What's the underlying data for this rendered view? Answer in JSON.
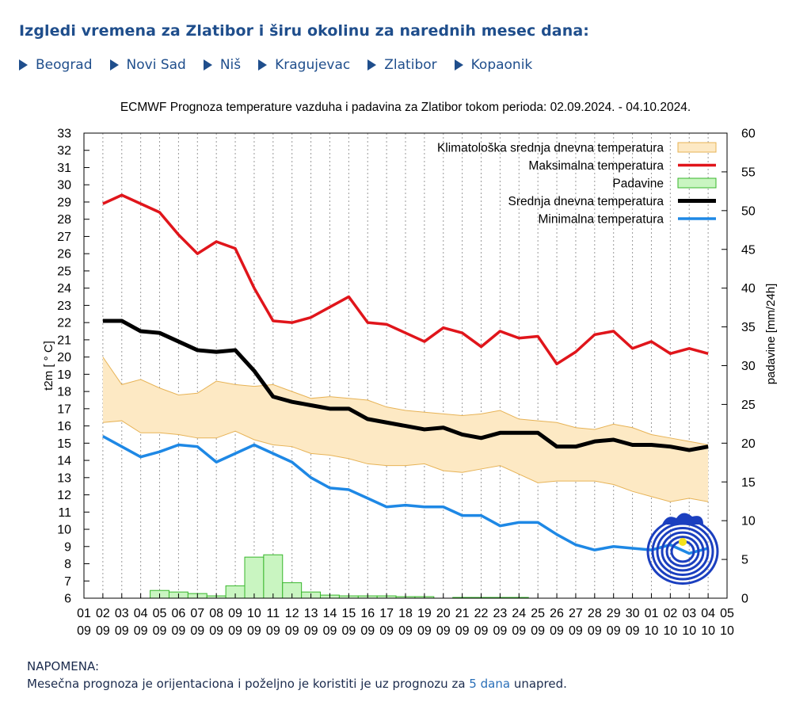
{
  "header": {
    "title": "Izgledi vremena za Zlatibor i širu okolinu za narednih mesec dana:"
  },
  "nav": {
    "cities": [
      "Beograd",
      "Novi Sad",
      "Niš",
      "Kragujevac",
      "Zlatibor",
      "Kopaonik"
    ]
  },
  "note": {
    "heading": "NAPOMENA:",
    "text_before": "Mesečna prognoza je orijentaciona i poželjno je koristiti je uz prognozu za",
    "link": "5 dana",
    "text_after": "unapred."
  },
  "colors": {
    "max": "#e0151b",
    "mean": "#000000",
    "min": "#1e88e5",
    "clim_fill": "#fde9c4",
    "clim_line": "#e7b356",
    "precip_fill": "#c9f5c1",
    "precip_line": "#38b62c",
    "title_blue": "#1f4e8c"
  },
  "chart_data": {
    "type": "line",
    "title": "ECMWF Prognoza temperature vazduha i padavina za Zlatibor tokom perioda: 02.09.2024. - 04.10.2024.",
    "ylabel": "t2m [ ° C]",
    "y2label": "padavine [mm/24h]",
    "ylim": [
      6,
      33
    ],
    "y2lim": [
      0,
      60
    ],
    "yticks": [
      6,
      7,
      8,
      9,
      10,
      11,
      12,
      13,
      14,
      15,
      16,
      17,
      18,
      19,
      20,
      21,
      22,
      23,
      24,
      25,
      26,
      27,
      28,
      29,
      30,
      31,
      32,
      33
    ],
    "y2ticks": [
      0,
      5,
      10,
      15,
      20,
      25,
      30,
      35,
      40,
      45,
      50,
      55,
      60
    ],
    "x_tick_days": [
      "01",
      "02",
      "03",
      "04",
      "05",
      "06",
      "07",
      "08",
      "09",
      "10",
      "11",
      "12",
      "13",
      "14",
      "15",
      "16",
      "17",
      "18",
      "19",
      "20",
      "21",
      "22",
      "23",
      "24",
      "25",
      "26",
      "27",
      "28",
      "29",
      "30",
      "01",
      "02",
      "03",
      "04",
      "05"
    ],
    "x_tick_months": [
      "09",
      "09",
      "09",
      "09",
      "09",
      "09",
      "09",
      "09",
      "09",
      "09",
      "09",
      "09",
      "09",
      "09",
      "09",
      "09",
      "09",
      "09",
      "09",
      "09",
      "09",
      "09",
      "09",
      "09",
      "09",
      "09",
      "09",
      "09",
      "09",
      "09",
      "10",
      "10",
      "10",
      "10",
      "10"
    ],
    "x_dates": [
      "2024-09-02",
      "2024-09-03",
      "2024-09-04",
      "2024-09-05",
      "2024-09-06",
      "2024-09-07",
      "2024-09-08",
      "2024-09-09",
      "2024-09-10",
      "2024-09-11",
      "2024-09-12",
      "2024-09-13",
      "2024-09-14",
      "2024-09-15",
      "2024-09-16",
      "2024-09-17",
      "2024-09-18",
      "2024-09-19",
      "2024-09-20",
      "2024-09-21",
      "2024-09-22",
      "2024-09-23",
      "2024-09-24",
      "2024-09-25",
      "2024-09-26",
      "2024-09-27",
      "2024-09-28",
      "2024-09-29",
      "2024-09-30",
      "2024-10-01",
      "2024-10-02",
      "2024-10-03",
      "2024-10-04"
    ],
    "grid": "vertical-dashed",
    "legend_position": "top-right",
    "series": [
      {
        "name": "Klimatološka srednja dnevna temperatura",
        "kind": "band",
        "upper": [
          20.0,
          18.4,
          18.7,
          18.2,
          17.8,
          17.9,
          18.6,
          18.4,
          18.3,
          18.4,
          18.0,
          17.6,
          17.7,
          17.6,
          17.5,
          17.1,
          16.9,
          16.8,
          16.7,
          16.6,
          16.7,
          16.9,
          16.4,
          16.3,
          16.2,
          15.9,
          15.8,
          16.1,
          15.9,
          15.5,
          15.3,
          15.1,
          14.9
        ],
        "lower": [
          16.2,
          16.3,
          15.6,
          15.6,
          15.5,
          15.3,
          15.3,
          15.7,
          15.2,
          14.9,
          14.8,
          14.4,
          14.3,
          14.1,
          13.8,
          13.7,
          13.7,
          13.8,
          13.4,
          13.3,
          13.5,
          13.7,
          13.2,
          12.7,
          12.8,
          12.8,
          12.8,
          12.6,
          12.2,
          11.9,
          11.6,
          11.8,
          11.6
        ]
      },
      {
        "name": "Maksimalna temperatura",
        "kind": "line",
        "values": [
          28.9,
          29.4,
          28.9,
          28.4,
          27.1,
          26.0,
          26.7,
          26.3,
          24.0,
          22.1,
          22.0,
          22.3,
          22.9,
          23.5,
          22.0,
          21.9,
          21.4,
          20.9,
          21.7,
          21.4,
          20.6,
          21.5,
          21.1,
          21.2,
          19.6,
          20.3,
          21.3,
          21.5,
          20.5,
          20.9,
          20.2,
          20.5,
          20.2
        ]
      },
      {
        "name": "Padavine",
        "kind": "bar",
        "axis": "y2",
        "values": [
          0,
          0,
          0,
          1.0,
          0.8,
          0.6,
          0.3,
          1.6,
          5.3,
          5.6,
          2.0,
          0.8,
          0.4,
          0.3,
          0.3,
          0.3,
          0.2,
          0.2,
          0,
          0.1,
          0.1,
          0.1,
          0.1,
          0,
          0,
          0,
          0,
          0,
          0,
          0,
          0,
          0,
          0
        ]
      },
      {
        "name": "Srednja dnevna temperatura",
        "kind": "line",
        "values": [
          22.1,
          22.1,
          21.5,
          21.4,
          20.9,
          20.4,
          20.3,
          20.4,
          19.2,
          17.7,
          17.4,
          17.2,
          17.0,
          17.0,
          16.4,
          16.2,
          16.0,
          15.8,
          15.9,
          15.5,
          15.3,
          15.6,
          15.6,
          15.6,
          14.8,
          14.8,
          15.1,
          15.2,
          14.9,
          14.9,
          14.8,
          14.6,
          14.8
        ]
      },
      {
        "name": "Minimalna temperatura",
        "kind": "line",
        "values": [
          15.4,
          14.8,
          14.2,
          14.5,
          14.9,
          14.8,
          13.9,
          14.4,
          14.9,
          14.4,
          13.9,
          13.0,
          12.4,
          12.3,
          11.8,
          11.3,
          11.4,
          11.3,
          11.3,
          10.8,
          10.8,
          10.2,
          10.4,
          10.4,
          9.7,
          9.1,
          8.8,
          9.0,
          8.9,
          8.8,
          9.1,
          8.6,
          8.9
        ]
      }
    ]
  }
}
